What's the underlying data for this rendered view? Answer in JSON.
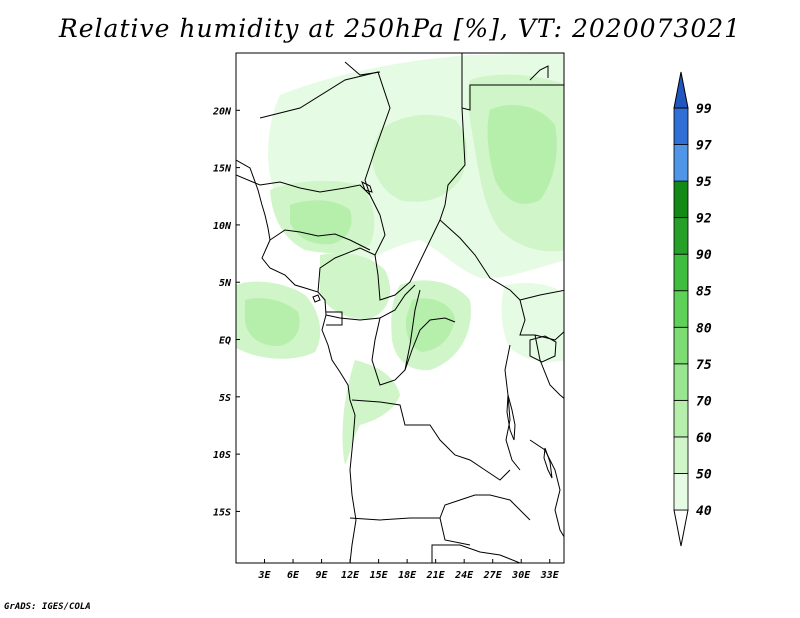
{
  "title": "Relative humidity at 250hPa [%], VT: 2020073021",
  "footer": "GrADS: IGES/COLA",
  "map": {
    "lon_range": [
      0,
      34.5
    ],
    "lat_range": [
      -19.5,
      25
    ],
    "lat_ticks": [
      {
        "value": 20,
        "label": "20N"
      },
      {
        "value": 15,
        "label": "15N"
      },
      {
        "value": 10,
        "label": "10N"
      },
      {
        "value": 5,
        "label": "5N"
      },
      {
        "value": 0,
        "label": "EQ"
      },
      {
        "value": -5,
        "label": "5S"
      },
      {
        "value": -10,
        "label": "10S"
      },
      {
        "value": -15,
        "label": "15S"
      }
    ],
    "lon_ticks": [
      {
        "value": 3,
        "label": "3E"
      },
      {
        "value": 6,
        "label": "6E"
      },
      {
        "value": 9,
        "label": "9E"
      },
      {
        "value": 12,
        "label": "12E"
      },
      {
        "value": 15,
        "label": "15E"
      },
      {
        "value": 18,
        "label": "18E"
      },
      {
        "value": 21,
        "label": "21E"
      },
      {
        "value": 24,
        "label": "24E"
      },
      {
        "value": 27,
        "label": "27E"
      },
      {
        "value": 30,
        "label": "30E"
      },
      {
        "value": 33,
        "label": "33E"
      }
    ]
  },
  "colorbar": {
    "levels": [
      {
        "label": "40",
        "color": "#ffffff"
      },
      {
        "label": "50",
        "color": "#e6fbe3"
      },
      {
        "label": "60",
        "color": "#d0f5c8"
      },
      {
        "label": "70",
        "color": "#b6efac"
      },
      {
        "label": "75",
        "color": "#98e690"
      },
      {
        "label": "80",
        "color": "#7ddc74"
      },
      {
        "label": "85",
        "color": "#5fd158"
      },
      {
        "label": "90",
        "color": "#3fbd3f"
      },
      {
        "label": "92",
        "color": "#27a02a"
      },
      {
        "label": "95",
        "color": "#148a16"
      },
      {
        "label": "97",
        "color": "#4f95e8"
      },
      {
        "label": "99",
        "color": "#2f6fd6"
      }
    ],
    "top_color": "#1f56c0"
  },
  "colors": {
    "c50": "#e6fbe3",
    "c60": "#d0f5c8",
    "c70": "#b6efac",
    "border": "#000000"
  }
}
